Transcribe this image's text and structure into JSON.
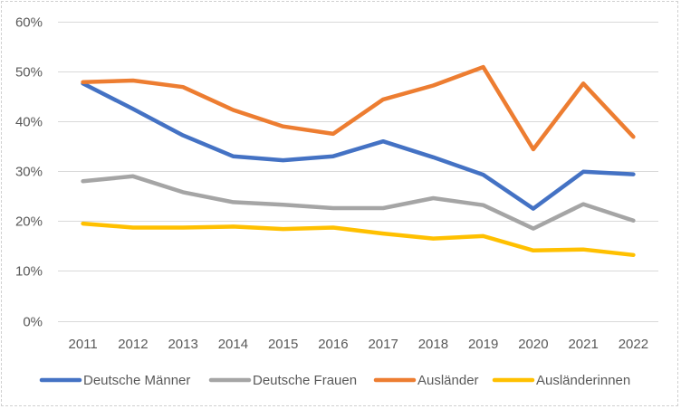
{
  "chart_data": {
    "type": "line",
    "title": "",
    "xlabel": "",
    "ylabel": "",
    "x": [
      "2011",
      "2012",
      "2013",
      "2014",
      "2015",
      "2016",
      "2017",
      "2018",
      "2019",
      "2020",
      "2021",
      "2022"
    ],
    "ylim": [
      0,
      60
    ],
    "yticks": [
      0,
      10,
      20,
      30,
      40,
      50,
      60
    ],
    "ytick_labels": [
      "0%",
      "10%",
      "20%",
      "30%",
      "40%",
      "50%",
      "60%"
    ],
    "grid": "horizontal",
    "legend_position": "bottom",
    "series": [
      {
        "name": "Deutsche Männer",
        "color": "#4472C4",
        "values": [
          47.6,
          42.5,
          37.2,
          33.0,
          32.2,
          33.0,
          36.0,
          32.8,
          29.3,
          22.5,
          29.9,
          29.4
        ]
      },
      {
        "name": "Deutsche Frauen",
        "color": "#A5A5A5",
        "values": [
          28.0,
          29.0,
          25.8,
          23.8,
          23.3,
          22.6,
          22.6,
          24.6,
          23.2,
          18.5,
          23.4,
          20.1
        ]
      },
      {
        "name": "Ausländer",
        "color": "#ED7D31",
        "values": [
          47.9,
          48.2,
          46.9,
          42.3,
          39.0,
          37.5,
          44.4,
          47.2,
          50.9,
          34.4,
          47.6,
          36.9
        ]
      },
      {
        "name": "Ausländerinnen",
        "color": "#FFC000",
        "values": [
          19.5,
          18.7,
          18.7,
          18.9,
          18.4,
          18.7,
          17.5,
          16.5,
          17.0,
          14.1,
          14.3,
          13.2
        ]
      }
    ]
  }
}
